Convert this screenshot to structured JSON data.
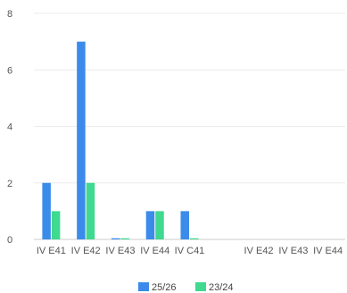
{
  "chart_data": {
    "type": "bar",
    "categories": [
      "IV E41",
      "IV E42",
      "IV E43",
      "IV E44",
      "IV C41",
      "",
      "IV E42",
      "IV E43",
      "IV E44"
    ],
    "series": [
      {
        "name": "25/26",
        "color": "#3b8beb",
        "values": [
          2,
          7,
          0.04,
          1,
          1,
          0,
          0,
          0,
          0
        ]
      },
      {
        "name": "23/24",
        "color": "#3fd98f",
        "values": [
          1,
          2,
          0.04,
          1,
          0.04,
          0,
          0,
          0,
          0
        ]
      }
    ],
    "y_ticks": [
      "0",
      "2",
      "4",
      "6",
      "8"
    ],
    "ylim": [
      0,
      8
    ],
    "grid": true,
    "legend_position": "bottom-center"
  }
}
